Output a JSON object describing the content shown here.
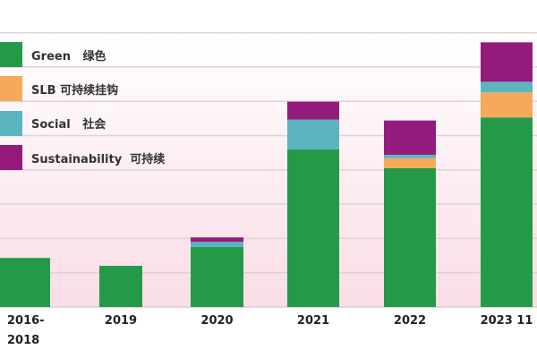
{
  "chart_data": {
    "type": "bar",
    "stacked": true,
    "title": "",
    "xlabel": "",
    "ylabel": "",
    "ylim": [
      0,
      8
    ],
    "grid": true,
    "legend_position": "top-left",
    "categories": [
      "2016-\n2018",
      "2019",
      "2020",
      "2021",
      "2022",
      "2023 11"
    ],
    "category_lines": [
      [
        "2016-",
        "2018"
      ],
      [
        "2019"
      ],
      [
        "2020"
      ],
      [
        "2021"
      ],
      [
        "2022"
      ],
      [
        "2023 11"
      ]
    ],
    "series": [
      {
        "name": "Green   绿色",
        "color": "#249a48",
        "values": [
          1.43,
          1.2,
          1.75,
          4.6,
          4.05,
          5.53
        ]
      },
      {
        "name": "SLB 可持续挂钩",
        "color": "#f5a95a",
        "values": [
          0,
          0,
          0,
          0,
          0.29,
          0.73
        ]
      },
      {
        "name": "Social   社会",
        "color": "#5bb5c1",
        "values": [
          0,
          0,
          0.15,
          0.87,
          0.1,
          0.31
        ]
      },
      {
        "name": "Sustainability  可持续",
        "color": "#931b7c",
        "values": [
          0,
          0,
          0.13,
          0.52,
          1.0,
          1.15
        ]
      }
    ]
  }
}
